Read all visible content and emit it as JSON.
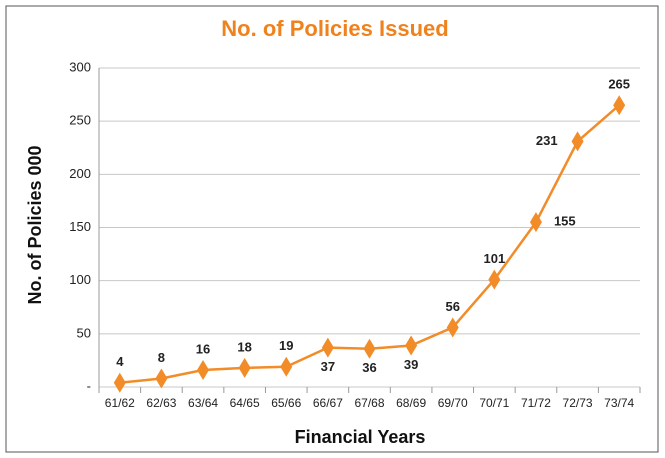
{
  "chart_data": {
    "type": "line",
    "title": "No. of Policies Issued",
    "x_label": "Financial Years",
    "y_label": "No. of Policies  000",
    "categories": [
      "61/62",
      "62/63",
      "63/64",
      "64/65",
      "65/66",
      "66/67",
      "67/68",
      "68/69",
      "69/70",
      "70/71",
      "71/72",
      "72/73",
      "73/74"
    ],
    "values": [
      4,
      8,
      16,
      18,
      19,
      37,
      36,
      39,
      56,
      101,
      155,
      231,
      265
    ],
    "color": "#f28c28",
    "ylim": [
      0,
      300
    ],
    "yticks": [
      {
        "value": 0,
        "label": "-"
      },
      50,
      100,
      150,
      200,
      250,
      300
    ],
    "grid": true
  }
}
